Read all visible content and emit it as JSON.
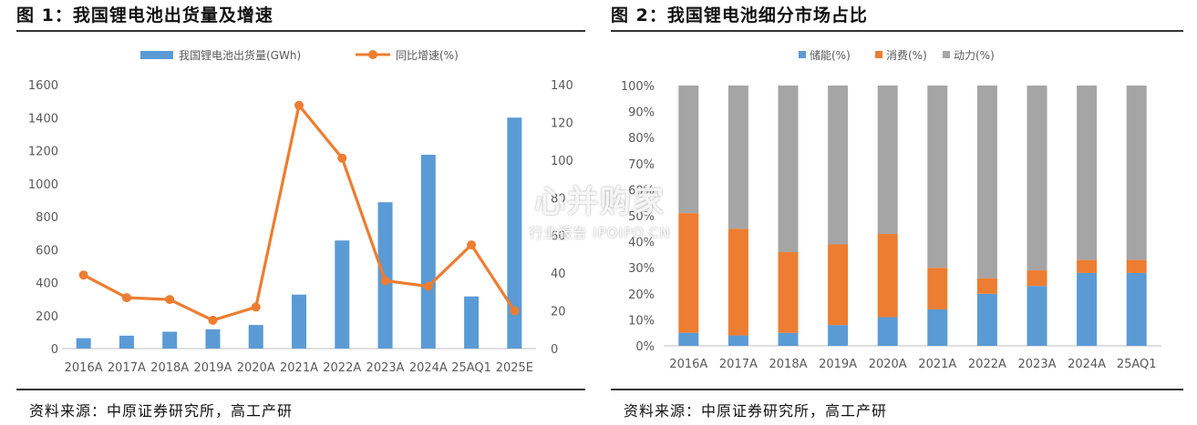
{
  "panel1": {
    "title": "图 1：我国锂电池出货量及增速",
    "source": "资料来源：中原证券研究所，高工产研"
  },
  "panel2": {
    "title": "图 2：我国锂电池细分市场占比",
    "source": "资料来源：中原证券研究所，高工产研"
  },
  "watermark": {
    "main": "心并购家",
    "sub": "行业报告 IPOIPO.CN"
  },
  "colors": {
    "blue": "#5B9BD5",
    "orange": "#ED7D31",
    "gray": "#A5A5A5",
    "axis": "#BFBFBF"
  },
  "chart_data": [
    {
      "type": "bar+line",
      "title": "",
      "categories": [
        "2016A",
        "2017A",
        "2018A",
        "2019A",
        "2020A",
        "2021A",
        "2022A",
        "2023A",
        "2024A",
        "25AQ1",
        "2025E"
      ],
      "series": [
        {
          "name": "我国锂电池出货量(GWh)",
          "type": "bar",
          "axis": "left",
          "values": [
            63,
            78,
            102,
            117,
            143,
            327,
            655,
            887,
            1175,
            316,
            1400
          ]
        },
        {
          "name": "同比增速(%)",
          "type": "line",
          "axis": "right",
          "values": [
            39,
            27,
            26,
            15,
            22,
            129,
            101,
            36,
            33,
            55,
            20
          ]
        }
      ],
      "y_left": {
        "min": 0,
        "max": 1600,
        "ticks": [
          "0",
          "200",
          "400",
          "600",
          "800",
          "1000",
          "1200",
          "1400",
          "1600"
        ]
      },
      "y_right": {
        "min": 0,
        "max": 140,
        "ticks": [
          "0",
          "20",
          "40",
          "60",
          "80",
          "100",
          "120",
          "140"
        ]
      },
      "grid": false,
      "legend": "top-center"
    },
    {
      "type": "stacked-bar",
      "title": "",
      "categories": [
        "2016A",
        "2017A",
        "2018A",
        "2019A",
        "2020A",
        "2021A",
        "2022A",
        "2023A",
        "2024A",
        "25AQ1"
      ],
      "series": [
        {
          "name": "储能(%)",
          "values": [
            5,
            4,
            5,
            8,
            11,
            14,
            20,
            23,
            28,
            28
          ]
        },
        {
          "name": "消费(%)",
          "values": [
            46,
            41,
            31,
            31,
            32,
            16,
            6,
            6,
            5,
            5
          ]
        },
        {
          "name": "动力(%)",
          "values": [
            49,
            55,
            64,
            61,
            57,
            70,
            74,
            71,
            67,
            67
          ]
        }
      ],
      "y_axis": {
        "min": 0,
        "max": 100,
        "ticks": [
          "0%",
          "10%",
          "20%",
          "30%",
          "40%",
          "50%",
          "60%",
          "70%",
          "80%",
          "90%",
          "100%"
        ]
      },
      "grid": false,
      "legend": "top-center"
    }
  ]
}
